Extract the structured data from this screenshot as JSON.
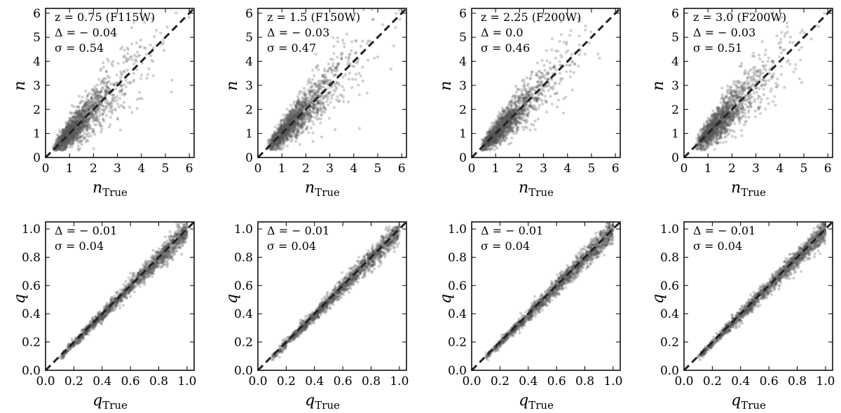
{
  "figure": {
    "title": "",
    "style": {
      "point_color": "#555555",
      "point_opacity": 0.28,
      "identity_line_color": "#222222",
      "frame_color": "#000000"
    }
  },
  "chart_data": [
    {
      "type": "scatter",
      "row": "n",
      "ylabel": "n",
      "xlabel_main": "n",
      "xlabel_sub": "True",
      "xlim": [
        0,
        6.2
      ],
      "ylim": [
        0,
        6.2
      ],
      "xticks": [
        "0",
        "1",
        "2",
        "3",
        "4",
        "5",
        "6"
      ],
      "yticks": [
        "0",
        "1",
        "2",
        "3",
        "4",
        "5",
        "6"
      ],
      "annotations": [
        "z = 0.75 (F115W)",
        "Δ = − 0.04",
        "σ = 0.54"
      ],
      "identity_line": true,
      "n_points": 1500,
      "x_min": 0.3,
      "x_mode": 1.4,
      "spread": 0.54
    },
    {
      "type": "scatter",
      "row": "n",
      "ylabel": "n",
      "xlabel_main": "n",
      "xlabel_sub": "True",
      "xlim": [
        0,
        6.2
      ],
      "ylim": [
        0,
        6.2
      ],
      "xticks": [
        "0",
        "1",
        "2",
        "3",
        "4",
        "5",
        "6"
      ],
      "yticks": [
        "0",
        "1",
        "2",
        "3",
        "4",
        "5",
        "6"
      ],
      "annotations": [
        "z = 1.5 (F150W)",
        "Δ = − 0.03",
        "σ = 0.47"
      ],
      "identity_line": true,
      "n_points": 1500,
      "x_min": 0.4,
      "x_mode": 1.5,
      "spread": 0.47
    },
    {
      "type": "scatter",
      "row": "n",
      "ylabel": "n",
      "xlabel_main": "n",
      "xlabel_sub": "True",
      "xlim": [
        0,
        6.2
      ],
      "ylim": [
        0,
        6.2
      ],
      "xticks": [
        "0",
        "1",
        "2",
        "3",
        "4",
        "5",
        "6"
      ],
      "yticks": [
        "0",
        "1",
        "2",
        "3",
        "4",
        "5",
        "6"
      ],
      "annotations": [
        "z = 2.25 (F200W)",
        "Δ = 0.0",
        "σ = 0.46"
      ],
      "identity_line": true,
      "n_points": 1500,
      "x_min": 0.4,
      "x_mode": 1.4,
      "spread": 0.46
    },
    {
      "type": "scatter",
      "row": "n",
      "ylabel": "n",
      "xlabel_main": "n",
      "xlabel_sub": "True",
      "xlim": [
        0,
        6.2
      ],
      "ylim": [
        0,
        6.2
      ],
      "xticks": [
        "0",
        "1",
        "2",
        "3",
        "4",
        "5",
        "6"
      ],
      "yticks": [
        "0",
        "1",
        "2",
        "3",
        "4",
        "5",
        "6"
      ],
      "annotations": [
        "z = 3.0 (F200W)",
        "Δ = − 0.03",
        "σ = 0.51"
      ],
      "identity_line": true,
      "n_points": 1500,
      "x_min": 0.5,
      "x_mode": 1.5,
      "spread": 0.51
    },
    {
      "type": "scatter",
      "row": "q",
      "ylabel": "q",
      "xlabel_main": "q",
      "xlabel_sub": "True",
      "xlim": [
        0,
        1.05
      ],
      "ylim": [
        0,
        1.05
      ],
      "xticks": [
        "0.0",
        "0.2",
        "0.4",
        "0.6",
        "0.8",
        "1.0"
      ],
      "yticks": [
        "0.0",
        "0.2",
        "0.4",
        "0.6",
        "0.8",
        "1.0"
      ],
      "annotations": [
        "Δ = − 0.01",
        "σ = 0.04"
      ],
      "identity_line": true,
      "n_points": 1500,
      "x_min": 0.1,
      "x_mode": 0.7,
      "spread": 0.04
    },
    {
      "type": "scatter",
      "row": "q",
      "ylabel": "q",
      "xlabel_main": "q",
      "xlabel_sub": "True",
      "xlim": [
        0,
        1.05
      ],
      "ylim": [
        0,
        1.05
      ],
      "xticks": [
        "0.0",
        "0.2",
        "0.4",
        "0.6",
        "0.8",
        "1.0"
      ],
      "yticks": [
        "0.0",
        "0.2",
        "0.4",
        "0.6",
        "0.8",
        "1.0"
      ],
      "annotations": [
        "Δ = − 0.01",
        "σ = 0.04"
      ],
      "identity_line": true,
      "n_points": 1500,
      "x_min": 0.1,
      "x_mode": 0.7,
      "spread": 0.04
    },
    {
      "type": "scatter",
      "row": "q",
      "ylabel": "q",
      "xlabel_main": "q",
      "xlabel_sub": "True",
      "xlim": [
        0,
        1.05
      ],
      "ylim": [
        0,
        1.05
      ],
      "xticks": [
        "0.0",
        "0.2",
        "0.4",
        "0.6",
        "0.8",
        "1.0"
      ],
      "yticks": [
        "0.0",
        "0.2",
        "0.4",
        "0.6",
        "0.8",
        "1.0"
      ],
      "annotations": [
        "Δ = − 0.01",
        "σ = 0.04"
      ],
      "identity_line": true,
      "n_points": 1500,
      "x_min": 0.1,
      "x_mode": 0.7,
      "spread": 0.04
    },
    {
      "type": "scatter",
      "row": "q",
      "ylabel": "q",
      "xlabel_main": "q",
      "xlabel_sub": "True",
      "xlim": [
        0,
        1.05
      ],
      "ylim": [
        0,
        1.05
      ],
      "xticks": [
        "0.0",
        "0.2",
        "0.4",
        "0.6",
        "0.8",
        "1.0"
      ],
      "yticks": [
        "0.0",
        "0.2",
        "0.4",
        "0.6",
        "0.8",
        "1.0"
      ],
      "annotations": [
        "Δ = − 0.01",
        "σ = 0.04"
      ],
      "identity_line": true,
      "n_points": 1500,
      "x_min": 0.1,
      "x_mode": 0.7,
      "spread": 0.04
    }
  ]
}
